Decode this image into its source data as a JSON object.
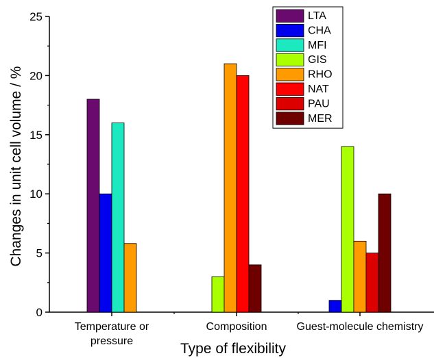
{
  "chart_data": {
    "type": "bar",
    "xlabel": "Type of flexibility",
    "ylabel": "Changes in unit cell volume / %",
    "ylim": [
      0,
      25
    ],
    "yticks": [
      0,
      5,
      10,
      15,
      20,
      25
    ],
    "grid": false,
    "legend_position": "top-right",
    "categories": [
      [
        "Temperature or",
        "pressure"
      ],
      [
        "Composition"
      ],
      [
        "Guest-molecule chemistry"
      ]
    ],
    "series": [
      {
        "name": "LTA",
        "color": "#6a0a6e",
        "values": [
          18,
          null,
          null
        ]
      },
      {
        "name": "CHA",
        "color": "#0000ee",
        "values": [
          10,
          null,
          1
        ]
      },
      {
        "name": "MFI",
        "color": "#1de9c0",
        "values": [
          16,
          null,
          null
        ]
      },
      {
        "name": "GIS",
        "color": "#aaff00",
        "values": [
          null,
          3,
          14
        ]
      },
      {
        "name": "RHO",
        "color": "#ff9a00",
        "values": [
          5.8,
          21,
          6
        ]
      },
      {
        "name": "NAT",
        "color": "#ff0000",
        "values": [
          null,
          20,
          null
        ]
      },
      {
        "name": "PAU",
        "color": "#dd0000",
        "values": [
          null,
          null,
          5
        ]
      },
      {
        "name": "MER",
        "color": "#6e0000",
        "values": [
          null,
          4,
          10
        ]
      }
    ]
  }
}
